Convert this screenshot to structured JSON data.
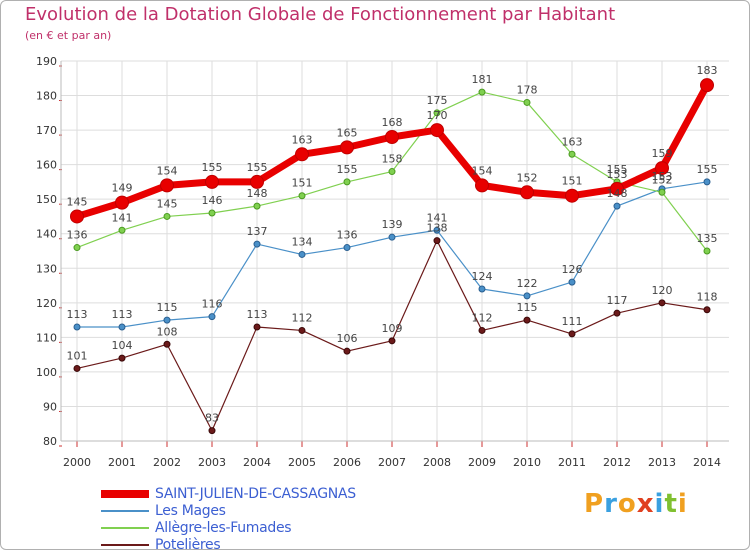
{
  "chart_data": {
    "type": "line",
    "title": "Evolution de la Dotation Globale de Fonctionnement par Habitant",
    "subtitle": "(en € et par an)",
    "xlabel": "",
    "ylabel": "",
    "ylim": [
      80,
      190
    ],
    "yticks": [
      80,
      90,
      100,
      110,
      120,
      130,
      140,
      150,
      160,
      170,
      180,
      190
    ],
    "categories": [
      "2000",
      "2001",
      "2002",
      "2003",
      "2004",
      "2005",
      "2006",
      "2007",
      "2008",
      "2009",
      "2010",
      "2011",
      "2012",
      "2013",
      "2014"
    ],
    "series": [
      {
        "name": "SAINT-JULIEN-DE-CASSAGNAS",
        "color": "#e80000",
        "values": [
          145,
          149,
          154,
          155,
          155,
          163,
          165,
          168,
          170,
          154,
          152,
          151,
          153,
          159,
          183
        ]
      },
      {
        "name": "Les Mages",
        "color": "#4a90c8",
        "values": [
          113,
          113,
          115,
          116,
          137,
          134,
          136,
          139,
          141,
          124,
          122,
          126,
          148,
          153,
          155
        ]
      },
      {
        "name": "Allègre-les-Fumades",
        "color": "#80d050",
        "values": [
          136,
          141,
          145,
          146,
          148,
          151,
          155,
          158,
          175,
          181,
          178,
          163,
          155,
          152,
          135
        ]
      },
      {
        "name": "Potelières",
        "color": "#6b1a1a",
        "values": [
          101,
          104,
          108,
          83,
          113,
          112,
          106,
          109,
          138,
          112,
          115,
          111,
          117,
          120,
          118
        ]
      }
    ],
    "grid": true,
    "legend_position": "bottom-left"
  },
  "logo": {
    "letters": [
      "P",
      "r",
      "o",
      "x",
      "i",
      "t",
      "i"
    ],
    "colors": [
      "#f0a020",
      "#3aa0e0",
      "#f0a020",
      "#e04020",
      "#3aa0e0",
      "#80c030",
      "#f0a020"
    ]
  }
}
